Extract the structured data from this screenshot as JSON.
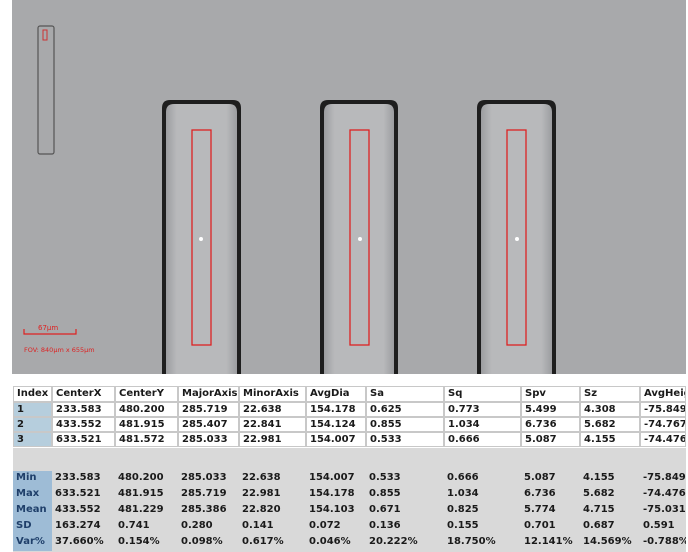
{
  "image": {
    "scale_label": "67µm",
    "fov_label": "FOV: 840µm x 655µm"
  },
  "table": {
    "headers": [
      "Index",
      "CenterX",
      "CenterY",
      "MajorAxis",
      "MinorAxis",
      "AvgDia",
      "Sa",
      "Sq",
      "Spv",
      "Sz",
      "AvgHeight"
    ],
    "rows": [
      [
        "1",
        "233.583",
        "480.200",
        "285.719",
        "22.638",
        "154.178",
        "0.625",
        "0.773",
        "5.499",
        "4.308",
        "-75.849"
      ],
      [
        "2",
        "433.552",
        "481.915",
        "285.407",
        "22.841",
        "154.124",
        "0.855",
        "1.034",
        "6.736",
        "5.682",
        "-74.767"
      ],
      [
        "3",
        "633.521",
        "481.572",
        "285.033",
        "22.981",
        "154.007",
        "0.533",
        "0.666",
        "5.087",
        "4.155",
        "-74.476"
      ]
    ],
    "stats": [
      [
        "Min",
        "233.583",
        "480.200",
        "285.033",
        "22.638",
        "154.007",
        "0.533",
        "0.666",
        "5.087",
        "4.155",
        "-75.849"
      ],
      [
        "Max",
        "633.521",
        "481.915",
        "285.719",
        "22.981",
        "154.178",
        "0.855",
        "1.034",
        "6.736",
        "5.682",
        "-74.476"
      ],
      [
        "Mean",
        "433.552",
        "481.229",
        "285.386",
        "22.820",
        "154.103",
        "0.671",
        "0.825",
        "5.774",
        "4.715",
        "-75.031"
      ],
      [
        "SD",
        "163.274",
        "0.741",
        "0.280",
        "0.141",
        "0.072",
        "0.136",
        "0.155",
        "0.701",
        "0.687",
        "0.591"
      ],
      [
        "Var%",
        "37.660%",
        "0.154%",
        "0.098%",
        "0.617%",
        "0.046%",
        "20.222%",
        "18.750%",
        "12.141%",
        "14.569%",
        "-0.788%"
      ]
    ]
  }
}
